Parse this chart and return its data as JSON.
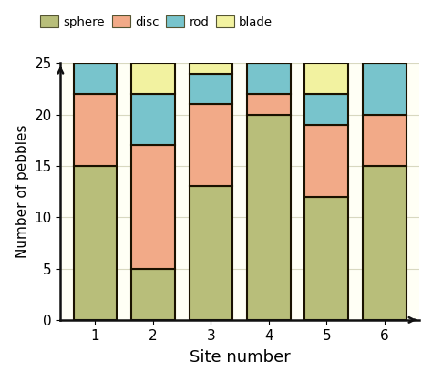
{
  "categories": [
    "1",
    "2",
    "3",
    "4",
    "5",
    "6"
  ],
  "sphere": [
    15,
    5,
    13,
    20,
    12,
    15
  ],
  "disc": [
    7,
    12,
    8,
    2,
    7,
    5
  ],
  "rod": [
    3,
    5,
    3,
    3,
    3,
    5
  ],
  "blade": [
    0,
    3,
    1,
    0,
    3,
    0
  ],
  "colors": {
    "sphere": "#b8be7a",
    "disc": "#f2aa88",
    "rod": "#78c4cc",
    "blade": "#f2f2a0"
  },
  "edgecolor": "#1a1200",
  "xlabel": "Site number",
  "ylabel": "Number of pebbles",
  "ylim": [
    0,
    25
  ],
  "yticks": [
    0,
    5,
    10,
    15,
    20,
    25
  ],
  "legend_labels": [
    "sphere",
    "disc",
    "rod",
    "blade"
  ],
  "bar_width": 0.75,
  "background_color": "#ffffff",
  "plot_bg_color": "#fffff5",
  "grid_color": "#d8d8c0"
}
